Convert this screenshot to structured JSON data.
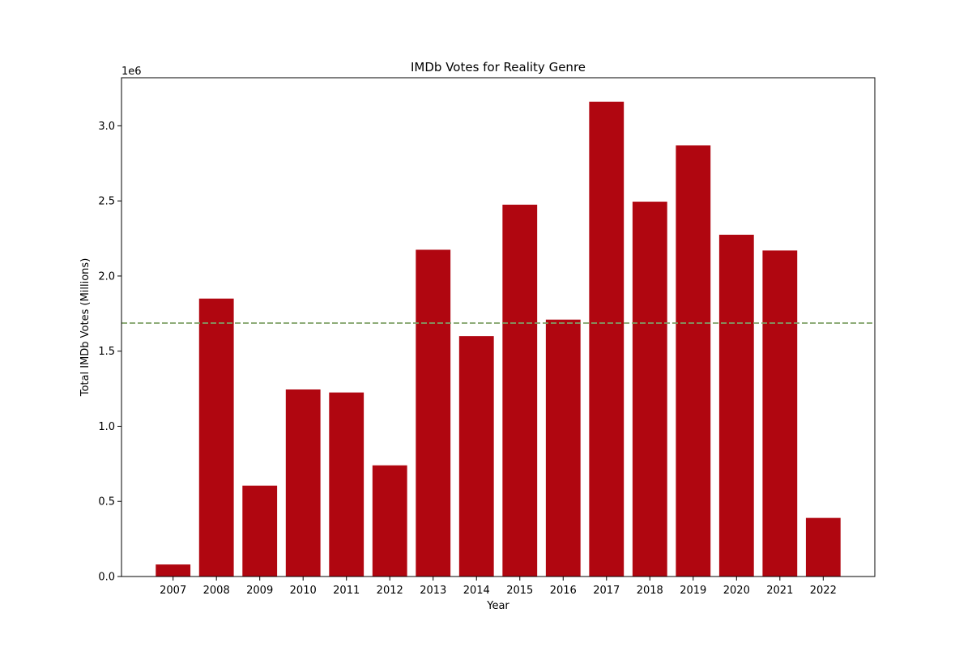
{
  "chart_data": {
    "type": "bar",
    "title": "IMDb Votes for Reality Genre",
    "xlabel": "Year",
    "ylabel": "Total IMDb Votes (Millions)",
    "y_offset_label": "1e6",
    "categories": [
      "2007",
      "2008",
      "2009",
      "2010",
      "2011",
      "2012",
      "2013",
      "2014",
      "2015",
      "2016",
      "2017",
      "2018",
      "2019",
      "2020",
      "2021",
      "2022"
    ],
    "values": [
      80000,
      1850000,
      605000,
      1245000,
      1225000,
      740000,
      2175000,
      1600000,
      2475000,
      1710000,
      3160000,
      2495000,
      2870000,
      2275000,
      2170000,
      390000
    ],
    "ylim": [
      0,
      3320000
    ],
    "yticks": [
      0,
      500000,
      1000000,
      1500000,
      2000000,
      2500000,
      3000000
    ],
    "ytick_labels": [
      "0.0",
      "0.5",
      "1.0",
      "1.5",
      "2.0",
      "2.5",
      "3.0"
    ],
    "reference_line": {
      "style": "dashed",
      "value": 1687000
    },
    "grid": false,
    "legend": false,
    "colors": {
      "bar": "#b00610",
      "reference_line": "#7fa066",
      "axes": "#000000"
    }
  }
}
